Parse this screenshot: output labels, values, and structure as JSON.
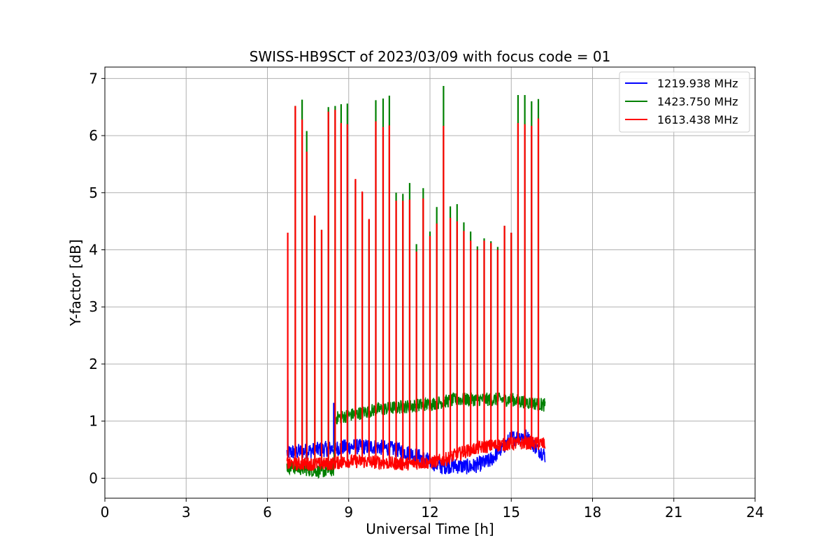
{
  "chart_data": {
    "type": "line",
    "title": "SWISS-HB9SCT of 2023/03/09 with focus code = 01",
    "xlabel": "Universal Time [h]",
    "ylabel": "Y-factor [dB]",
    "xlim": [
      0,
      24
    ],
    "ylim": [
      -0.35,
      7.2
    ],
    "xticks": [
      0,
      3,
      6,
      9,
      12,
      15,
      18,
      21,
      24
    ],
    "yticks": [
      0,
      1,
      2,
      3,
      4,
      5,
      6,
      7
    ],
    "grid": true,
    "legend_position": "top-right",
    "series": [
      {
        "name": "1219.938 MHz",
        "color": "#0000ff",
        "start": 6.72,
        "end": 16.25,
        "baseline": [
          [
            6.72,
            0.45
          ],
          [
            7.5,
            0.48
          ],
          [
            8.3,
            0.52
          ],
          [
            9.0,
            0.55
          ],
          [
            10.0,
            0.55
          ],
          [
            10.8,
            0.5
          ],
          [
            11.5,
            0.4
          ],
          [
            12.0,
            0.3
          ],
          [
            12.4,
            0.2
          ],
          [
            12.8,
            0.22
          ],
          [
            13.5,
            0.2
          ],
          [
            14.2,
            0.3
          ],
          [
            14.6,
            0.5
          ],
          [
            15.0,
            0.7
          ],
          [
            15.5,
            0.75
          ],
          [
            15.9,
            0.55
          ],
          [
            16.25,
            0.4
          ]
        ],
        "noise": 0.14,
        "peaks": [
          [
            6.75,
            1.72
          ],
          [
            8.45,
            1.32
          ]
        ]
      },
      {
        "name": "1423.750 MHz",
        "color": "#008000",
        "start": 6.72,
        "end": 16.25,
        "baseline": [
          [
            6.72,
            0.2
          ],
          [
            7.5,
            0.15
          ],
          [
            8.0,
            0.12
          ],
          [
            8.45,
            0.15
          ],
          [
            8.5,
            1.05
          ],
          [
            9.0,
            1.1
          ],
          [
            10.0,
            1.2
          ],
          [
            11.0,
            1.25
          ],
          [
            12.0,
            1.3
          ],
          [
            13.0,
            1.38
          ],
          [
            14.0,
            1.38
          ],
          [
            15.0,
            1.38
          ],
          [
            16.25,
            1.28
          ]
        ],
        "noise": 0.12,
        "peaks": [
          [
            7.03,
            6.52
          ],
          [
            7.28,
            6.63
          ],
          [
            7.45,
            6.08
          ],
          [
            7.75,
            4.6
          ],
          [
            8.0,
            4.35
          ],
          [
            8.25,
            6.5
          ],
          [
            8.5,
            6.52
          ],
          [
            8.72,
            6.55
          ],
          [
            8.95,
            6.56
          ],
          [
            9.25,
            5.22
          ],
          [
            9.5,
            5.0
          ],
          [
            9.75,
            4.52
          ],
          [
            10.0,
            6.62
          ],
          [
            10.27,
            6.65
          ],
          [
            10.5,
            6.7
          ],
          [
            10.75,
            5.0
          ],
          [
            11.0,
            4.98
          ],
          [
            11.25,
            5.17
          ],
          [
            11.5,
            4.1
          ],
          [
            11.75,
            5.08
          ],
          [
            12.0,
            4.32
          ],
          [
            12.25,
            4.75
          ],
          [
            12.5,
            6.87
          ],
          [
            12.75,
            4.76
          ],
          [
            13.0,
            4.8
          ],
          [
            13.25,
            4.48
          ],
          [
            13.5,
            4.32
          ],
          [
            13.75,
            4.06
          ],
          [
            14.0,
            4.2
          ],
          [
            14.25,
            4.15
          ],
          [
            14.5,
            4.05
          ],
          [
            14.75,
            4.42
          ],
          [
            15.0,
            4.3
          ],
          [
            15.25,
            6.71
          ],
          [
            15.5,
            6.71
          ],
          [
            15.75,
            6.6
          ],
          [
            16.0,
            6.64
          ]
        ]
      },
      {
        "name": "1613.438 MHz",
        "color": "#ff0000",
        "start": 6.72,
        "end": 16.25,
        "baseline": [
          [
            6.72,
            0.25
          ],
          [
            7.5,
            0.25
          ],
          [
            8.3,
            0.25
          ],
          [
            9.0,
            0.3
          ],
          [
            10.0,
            0.28
          ],
          [
            11.0,
            0.25
          ],
          [
            12.0,
            0.28
          ],
          [
            12.5,
            0.32
          ],
          [
            13.0,
            0.42
          ],
          [
            13.5,
            0.5
          ],
          [
            14.0,
            0.55
          ],
          [
            14.5,
            0.58
          ],
          [
            15.0,
            0.6
          ],
          [
            15.5,
            0.62
          ],
          [
            16.25,
            0.6
          ]
        ],
        "noise": 0.12,
        "peaks": [
          [
            6.75,
            4.3
          ],
          [
            7.03,
            6.52
          ],
          [
            7.28,
            6.28
          ],
          [
            7.45,
            5.72
          ],
          [
            7.75,
            4.6
          ],
          [
            8.0,
            4.35
          ],
          [
            8.25,
            6.42
          ],
          [
            8.5,
            6.45
          ],
          [
            8.72,
            6.22
          ],
          [
            8.95,
            6.2
          ],
          [
            9.25,
            5.24
          ],
          [
            9.5,
            5.02
          ],
          [
            9.75,
            4.54
          ],
          [
            10.0,
            6.25
          ],
          [
            10.27,
            6.15
          ],
          [
            10.5,
            6.18
          ],
          [
            10.75,
            4.86
          ],
          [
            11.0,
            4.86
          ],
          [
            11.25,
            4.88
          ],
          [
            11.5,
            3.97
          ],
          [
            11.75,
            4.9
          ],
          [
            12.0,
            4.24
          ],
          [
            12.25,
            4.46
          ],
          [
            12.5,
            6.17
          ],
          [
            12.75,
            4.56
          ],
          [
            13.0,
            4.5
          ],
          [
            13.25,
            4.33
          ],
          [
            13.5,
            4.16
          ],
          [
            13.75,
            4.0
          ],
          [
            14.0,
            4.16
          ],
          [
            14.25,
            4.12
          ],
          [
            14.5,
            4.0
          ],
          [
            14.75,
            4.42
          ],
          [
            15.0,
            4.3
          ],
          [
            15.25,
            6.22
          ],
          [
            15.5,
            6.2
          ],
          [
            15.75,
            6.17
          ],
          [
            16.0,
            6.3
          ]
        ]
      }
    ]
  }
}
